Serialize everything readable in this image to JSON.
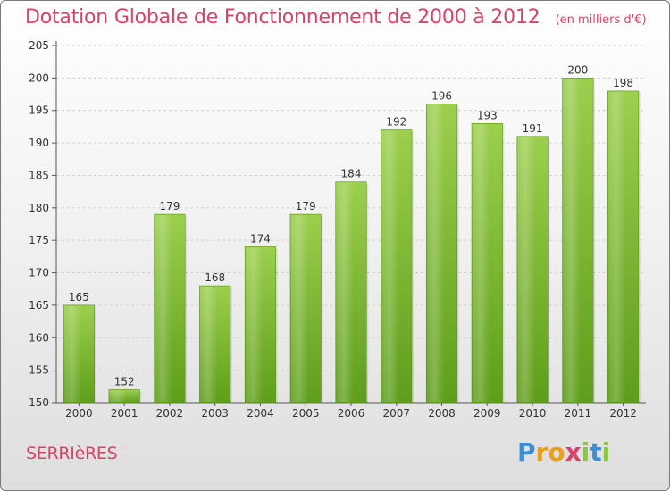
{
  "chart_data": {
    "type": "bar",
    "title": "Dotation Globale de Fonctionnement de 2000 à 2012",
    "subtitle": "(en milliers d'€)",
    "categories": [
      "2000",
      "2001",
      "2002",
      "2003",
      "2004",
      "2005",
      "2006",
      "2007",
      "2008",
      "2009",
      "2010",
      "2011",
      "2012"
    ],
    "values": [
      165,
      152,
      179,
      168,
      174,
      179,
      184,
      192,
      196,
      193,
      191,
      200,
      198
    ],
    "ylim": [
      150,
      205
    ],
    "yticks": [
      150,
      155,
      160,
      165,
      170,
      175,
      180,
      185,
      190,
      195,
      200,
      205
    ],
    "grid": true,
    "legend": "none",
    "bar_color_top": "#9ccf4e",
    "bar_color_bottom": "#5e9e1a"
  },
  "commune": "SERRIèRES",
  "logo": {
    "text": "Proxiti",
    "letters": [
      {
        "ch": "P",
        "color": "#3a8fd6"
      },
      {
        "ch": "r",
        "color": "#e9a020"
      },
      {
        "ch": "o",
        "color": "#e9a020"
      },
      {
        "ch": "x",
        "color": "#d6436a"
      },
      {
        "ch": "i",
        "color": "#8cc63f"
      },
      {
        "ch": "t",
        "color": "#3a8fd6"
      },
      {
        "ch": "i",
        "color": "#8cc63f"
      }
    ]
  }
}
